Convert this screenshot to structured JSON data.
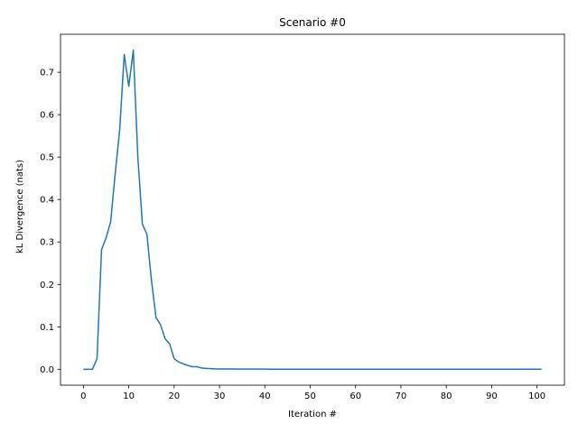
{
  "chart_data": {
    "type": "line",
    "title": "Scenario #0",
    "xlabel": "Iteration #",
    "ylabel": "kL Divergence (nats)",
    "xlim": [
      -5.05,
      106.05
    ],
    "ylim": [
      -0.0376,
      0.7895
    ],
    "xticks": [
      0,
      10,
      20,
      30,
      40,
      50,
      60,
      70,
      80,
      90,
      100
    ],
    "xtick_labels": [
      "0",
      "10",
      "20",
      "30",
      "40",
      "50",
      "60",
      "70",
      "80",
      "90",
      "100"
    ],
    "yticks": [
      0.0,
      0.1,
      0.2,
      0.3,
      0.4,
      0.5,
      0.6,
      0.7
    ],
    "ytick_labels": [
      "0.0",
      "0.1",
      "0.2",
      "0.3",
      "0.4",
      "0.5",
      "0.6",
      "0.7"
    ],
    "grid": false,
    "series": [
      {
        "color": "#1f77b4",
        "x": [
          0,
          1,
          2,
          3,
          4,
          5,
          6,
          7,
          8,
          9,
          10,
          11,
          12,
          13,
          14,
          15,
          16,
          17,
          18,
          19,
          20,
          21,
          22,
          23,
          24,
          25,
          26,
          27,
          28,
          29,
          30,
          31,
          32,
          33,
          34,
          35,
          36,
          37,
          38,
          39,
          40,
          41,
          42,
          43,
          44,
          45,
          46,
          47,
          48,
          49,
          50,
          51,
          52,
          53,
          54,
          55,
          56,
          57,
          58,
          59,
          60,
          61,
          62,
          63,
          64,
          65,
          66,
          67,
          68,
          69,
          70,
          71,
          72,
          73,
          74,
          75,
          76,
          77,
          78,
          79,
          80,
          81,
          82,
          83,
          84,
          85,
          86,
          87,
          88,
          89,
          90,
          91,
          92,
          93,
          94,
          95,
          96,
          97,
          98,
          99,
          100,
          101
        ],
        "values": [
          0.0,
          0.0,
          0.0,
          0.025,
          0.282,
          0.31,
          0.347,
          0.46,
          0.565,
          0.742,
          0.667,
          0.752,
          0.5,
          0.342,
          0.318,
          0.21,
          0.122,
          0.105,
          0.072,
          0.06,
          0.025,
          0.017,
          0.013,
          0.009,
          0.006,
          0.006,
          0.003,
          0.002,
          0.0015,
          0.001,
          0.0008,
          0.0007,
          0.0008,
          0.0006,
          0.0005,
          0.0005,
          0.0004,
          0.0004,
          0.0003,
          0.0003,
          0.0003,
          0.0002,
          0.0002,
          0.0002,
          0.0002,
          0.0002,
          0.0001,
          0.0001,
          0.0001,
          0.0001,
          0.0001,
          0.0001,
          0.0001,
          0.0001,
          0.0001,
          0.0001,
          0.0001,
          0.0001,
          0.0001,
          0.0001,
          0.0001,
          0.0001,
          0.0001,
          0.0001,
          0.0001,
          0.0001,
          0.0001,
          0.0001,
          0.0001,
          0.0001,
          0.0001,
          0.0001,
          0.0001,
          0.0001,
          0.0001,
          0.0001,
          0.0001,
          0.0001,
          0.0001,
          0.0001,
          0.0001,
          0.0001,
          0.0001,
          0.0001,
          0.0001,
          0.0001,
          0.0001,
          0.0001,
          0.0001,
          0.0001,
          0.0001,
          0.0001,
          0.0001,
          0.0001,
          0.0001,
          0.0001,
          0.0001,
          0.0001,
          0.0001,
          0.0001,
          0.0001,
          0.0001
        ]
      }
    ]
  }
}
